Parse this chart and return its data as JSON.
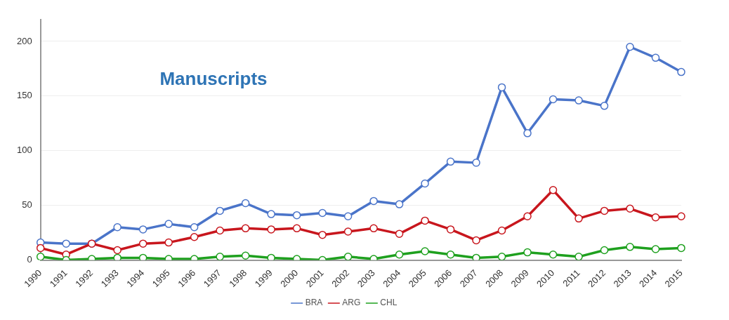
{
  "chart_data": {
    "type": "line",
    "title": "Manuscripts",
    "categories": [
      "1990",
      "1991",
      "1992",
      "1993",
      "1994",
      "1995",
      "1996",
      "1997",
      "1998",
      "1999",
      "2000",
      "2001",
      "2002",
      "2003",
      "2004",
      "2005",
      "2006",
      "2007",
      "2008",
      "2009",
      "2010",
      "2011",
      "2012",
      "2013",
      "2014",
      "2015"
    ],
    "series": [
      {
        "name": "BRA",
        "color": "#4a74c9",
        "values": [
          16,
          15,
          15,
          30,
          28,
          33,
          30,
          45,
          52,
          42,
          41,
          43,
          40,
          54,
          51,
          70,
          90,
          89,
          158,
          116,
          147,
          146,
          141,
          195,
          185,
          172
        ]
      },
      {
        "name": "ARG",
        "color": "#c8161d",
        "values": [
          11,
          5,
          15,
          9,
          15,
          16,
          21,
          27,
          29,
          28,
          29,
          23,
          26,
          29,
          24,
          36,
          28,
          18,
          27,
          40,
          64,
          38,
          45,
          47,
          39,
          40
        ]
      },
      {
        "name": "CHL",
        "color": "#1ea01e",
        "values": [
          3,
          0,
          1,
          2,
          2,
          1,
          1,
          3,
          4,
          2,
          1,
          0,
          3,
          1,
          5,
          8,
          5,
          2,
          3,
          7,
          5,
          3,
          9,
          12,
          10,
          11
        ]
      }
    ],
    "ylim": [
      0,
      220
    ],
    "yticks": [
      0,
      50,
      100,
      150,
      200
    ],
    "grid": "y",
    "legend": "bottom",
    "marker": "circle",
    "line_style": "solid"
  }
}
